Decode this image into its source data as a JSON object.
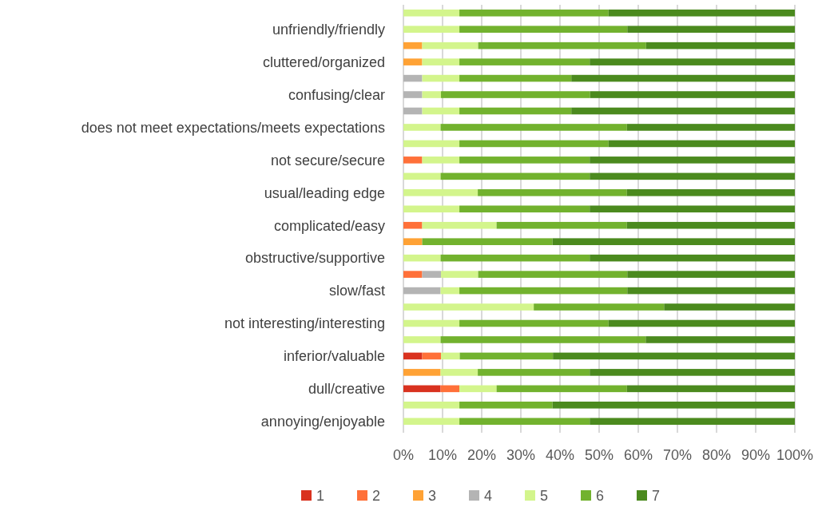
{
  "chart_data": {
    "type": "bar",
    "orientation": "horizontal",
    "stacked": true,
    "categories": [
      null,
      "unfriendly/friendly",
      null,
      "cluttered/organized",
      null,
      "confusing/clear",
      null,
      "does not meet expectations/meets expectations",
      null,
      "not secure/secure",
      null,
      "usual/leading edge",
      null,
      "complicated/easy",
      null,
      "obstructive/supportive",
      null,
      "slow/fast",
      null,
      "not interesting/interesting",
      null,
      "inferior/valuable",
      null,
      "dull/creative",
      null,
      "annoying/enjoyable"
    ],
    "series": [
      {
        "name": "1",
        "color": "#d9321f",
        "values": [
          0,
          0,
          0,
          0,
          0,
          0,
          0,
          0,
          0,
          0,
          0,
          0,
          0,
          0,
          0,
          0,
          0,
          0,
          0,
          0,
          0,
          4.8,
          0,
          9.5,
          0,
          0
        ]
      },
      {
        "name": "2",
        "color": "#ff7039",
        "values": [
          0,
          0,
          0,
          0,
          0,
          0,
          0,
          0,
          0,
          4.8,
          0,
          0,
          0,
          4.8,
          0,
          0,
          4.8,
          0,
          0,
          0,
          0,
          4.8,
          0,
          4.8,
          0,
          0
        ]
      },
      {
        "name": "3",
        "color": "#ffa235",
        "values": [
          0,
          0,
          4.8,
          4.8,
          0,
          0,
          0,
          0,
          0,
          0,
          0,
          0,
          0,
          0,
          4.8,
          0,
          0,
          0,
          0,
          0,
          0,
          0,
          9.5,
          0,
          0,
          0
        ]
      },
      {
        "name": "4",
        "color": "#b4b4b4",
        "values": [
          0,
          0,
          0,
          0,
          4.8,
          4.8,
          4.8,
          0,
          0,
          0,
          0,
          0,
          0,
          0,
          0,
          0,
          4.8,
          9.5,
          0,
          0,
          0,
          0,
          0,
          0,
          0,
          0
        ]
      },
      {
        "name": "5",
        "color": "#d3f58c",
        "values": [
          14.3,
          14.3,
          14.3,
          9.5,
          9.5,
          4.8,
          9.5,
          9.5,
          14.3,
          9.5,
          9.5,
          19.0,
          14.3,
          19.0,
          0,
          9.5,
          9.5,
          4.8,
          33.3,
          14.3,
          9.5,
          4.8,
          9.5,
          9.5,
          14.3,
          14.3
        ]
      },
      {
        "name": "6",
        "color": "#72b22e",
        "values": [
          38.1,
          42.9,
          42.9,
          33.3,
          28.6,
          38.1,
          28.6,
          47.6,
          38.1,
          33.3,
          38.1,
          38.1,
          33.3,
          33.3,
          33.3,
          38.1,
          38.1,
          42.9,
          33.3,
          38.1,
          52.4,
          23.8,
          28.6,
          33.3,
          23.8,
          33.3
        ]
      },
      {
        "name": "7",
        "color": "#4b8a1e",
        "values": [
          47.6,
          42.8,
          38.0,
          52.4,
          57.1,
          52.3,
          57.1,
          42.9,
          47.6,
          52.4,
          52.4,
          42.9,
          52.4,
          42.9,
          61.9,
          52.4,
          42.8,
          42.8,
          33.4,
          47.6,
          38.1,
          61.8,
          52.4,
          42.9,
          61.9,
          52.4
        ]
      }
    ],
    "xlim": [
      0,
      100
    ],
    "xticks": [
      {
        "value": 0,
        "label": "0%"
      },
      {
        "value": 10,
        "label": "10%"
      },
      {
        "value": 20,
        "label": "20%"
      },
      {
        "value": 30,
        "label": "30%"
      },
      {
        "value": 40,
        "label": "40%"
      },
      {
        "value": 50,
        "label": "50%"
      },
      {
        "value": 60,
        "label": "60%"
      },
      {
        "value": 70,
        "label": "70%"
      },
      {
        "value": 80,
        "label": "80%"
      },
      {
        "value": 90,
        "label": "90%"
      },
      {
        "value": 100,
        "label": "100%"
      }
    ],
    "grid": "x",
    "legend": "bottom"
  }
}
